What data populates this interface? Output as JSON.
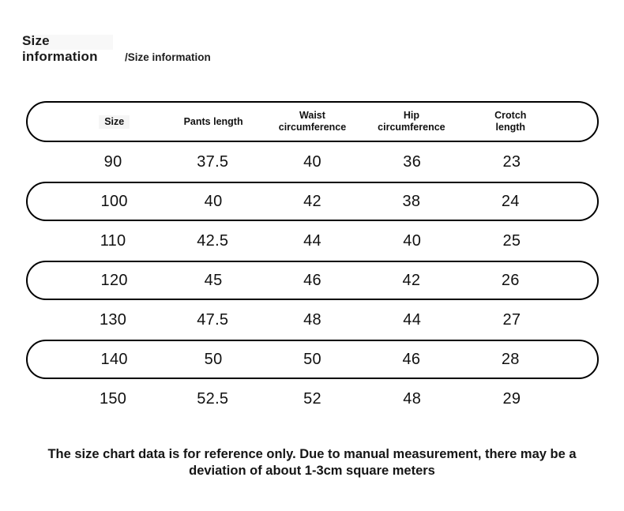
{
  "colors": {
    "background": "#ffffff",
    "border": "#000000",
    "text": "#111111",
    "patch": "#f5f5f5"
  },
  "header": {
    "title_line1": "Size",
    "title_line2": "information",
    "subtitle": "/Size information"
  },
  "size_table": {
    "columns": [
      {
        "label": "Size"
      },
      {
        "label": "Pants length"
      },
      {
        "label": "Waist\ncircumference"
      },
      {
        "label": "Hip\ncircumference"
      },
      {
        "label": "Crotch\nlength"
      }
    ],
    "rows": [
      {
        "bordered": false,
        "values": [
          "90",
          "37.5",
          "40",
          "36",
          "23"
        ]
      },
      {
        "bordered": true,
        "values": [
          "100",
          "40",
          "42",
          "38",
          "24"
        ]
      },
      {
        "bordered": false,
        "values": [
          "110",
          "42.5",
          "44",
          "40",
          "25"
        ]
      },
      {
        "bordered": true,
        "values": [
          "120",
          "45",
          "46",
          "42",
          "26"
        ]
      },
      {
        "bordered": false,
        "values": [
          "130",
          "47.5",
          "48",
          "44",
          "27"
        ]
      },
      {
        "bordered": true,
        "values": [
          "140",
          "50",
          "50",
          "46",
          "28"
        ]
      },
      {
        "bordered": false,
        "values": [
          "150",
          "52.5",
          "52",
          "48",
          "29"
        ]
      }
    ]
  },
  "footnote": {
    "text": "The size chart data is for reference only. Due to manual measurement, there may be a deviation of about 1-3cm square meters"
  }
}
